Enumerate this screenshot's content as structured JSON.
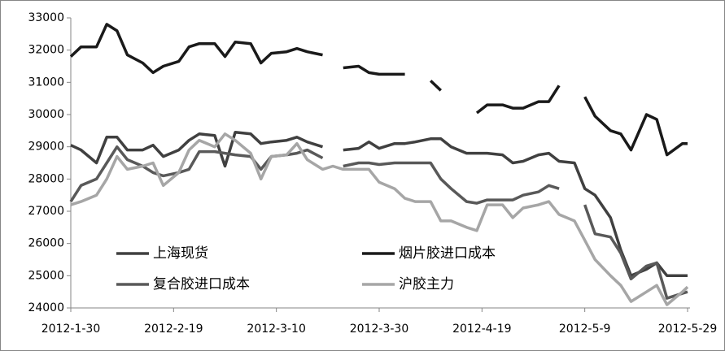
{
  "chart_data": {
    "type": "line",
    "x": [
      "2012-1-30",
      "2012-2-1",
      "2012-2-4",
      "2012-2-6",
      "2012-2-8",
      "2012-2-10",
      "2012-2-13",
      "2012-2-15",
      "2012-2-17",
      "2012-2-20",
      "2012-2-22",
      "2012-2-24",
      "2012-2-27",
      "2012-2-29",
      "2012-3-2",
      "2012-3-5",
      "2012-3-7",
      "2012-3-9",
      "2012-3-12",
      "2012-3-14",
      "2012-3-16",
      "2012-3-19",
      "2012-3-21",
      "2012-3-23",
      "2012-3-26",
      "2012-3-28",
      "2012-3-30",
      "2012-4-2",
      "2012-4-4",
      "2012-4-6",
      "2012-4-9",
      "2012-4-11",
      "2012-4-13",
      "2012-4-16",
      "2012-4-18",
      "2012-4-20",
      "2012-4-23",
      "2012-4-25",
      "2012-4-27",
      "2012-4-30",
      "2012-5-2",
      "2012-5-4",
      "2012-5-7",
      "2012-5-9",
      "2012-5-11",
      "2012-5-14",
      "2012-5-16",
      "2012-5-18",
      "2012-5-21",
      "2012-5-23",
      "2012-5-25",
      "2012-5-28",
      "2012-5-29"
    ],
    "series": [
      {
        "name": "上海现货",
        "color": "#404040",
        "values": [
          29050,
          28900,
          28500,
          29300,
          29300,
          28900,
          28900,
          29050,
          28700,
          28900,
          29200,
          29400,
          29350,
          28400,
          29450,
          29400,
          29100,
          29150,
          29200,
          29300,
          29150,
          29000,
          null,
          28900,
          28950,
          29150,
          28950,
          29100,
          29100,
          29150,
          29250,
          29250,
          29000,
          28800,
          28800,
          28800,
          28750,
          28500,
          28550,
          28750,
          28800,
          28550,
          28500,
          27700,
          27500,
          26800,
          25800,
          25000,
          25200,
          25400,
          25000,
          25000,
          25000
        ]
      },
      {
        "name": "烟片胶进口成本",
        "color": "#1a1a1a",
        "values": [
          31800,
          32100,
          32100,
          32800,
          32600,
          31850,
          31600,
          31300,
          31500,
          31650,
          32100,
          32200,
          32200,
          31800,
          32250,
          32200,
          31600,
          31900,
          31950,
          32050,
          31950,
          31850,
          null,
          31450,
          31500,
          31300,
          31250,
          31250,
          31250,
          null,
          31050,
          30750,
          null,
          null,
          30050,
          30300,
          30300,
          30200,
          30200,
          30400,
          30400,
          30900,
          null,
          30550,
          29950,
          29500,
          29400,
          28900,
          30000,
          29850,
          28750,
          29100,
          29100
        ]
      },
      {
        "name": "复合胶进口成本",
        "color": "#595959",
        "values": [
          27300,
          27800,
          28000,
          28500,
          29000,
          28600,
          28400,
          28200,
          28100,
          28200,
          28300,
          28850,
          28850,
          28800,
          28750,
          28700,
          28300,
          28700,
          28750,
          28800,
          28900,
          28650,
          null,
          28400,
          28500,
          28500,
          28450,
          28500,
          28500,
          28500,
          28500,
          28000,
          27700,
          27300,
          27250,
          27350,
          27350,
          27350,
          27500,
          27600,
          27800,
          27700,
          null,
          27200,
          26300,
          26200,
          25700,
          24900,
          25300,
          25400,
          24300,
          24450,
          24500
        ]
      },
      {
        "name": "沪胶主力",
        "color": "#a6a6a6",
        "values": [
          27200,
          27300,
          27500,
          28000,
          28700,
          28300,
          28400,
          28500,
          27800,
          28200,
          28900,
          29200,
          29000,
          29400,
          29200,
          28800,
          28000,
          28700,
          28750,
          29100,
          28600,
          28300,
          28400,
          28300,
          28300,
          28300,
          27900,
          27700,
          27400,
          27300,
          27300,
          26700,
          26700,
          26500,
          26400,
          27200,
          27200,
          26800,
          27100,
          27200,
          27300,
          26900,
          26700,
          26100,
          25500,
          25000,
          24700,
          24200,
          24500,
          24700,
          24100,
          24500,
          24650
        ]
      }
    ],
    "xlim": [
      "2012-1-30",
      "2012-5-29"
    ],
    "xticks": [
      "2012-1-30",
      "2012-2-19",
      "2012-3-10",
      "2012-3-30",
      "2012-4-19",
      "2012-5-9",
      "2012-5-29"
    ],
    "ylim": [
      24000,
      33000
    ],
    "yticks": [
      24000,
      25000,
      26000,
      27000,
      28000,
      29000,
      30000,
      31000,
      32000,
      33000
    ],
    "grid": false,
    "legend": "inside"
  }
}
